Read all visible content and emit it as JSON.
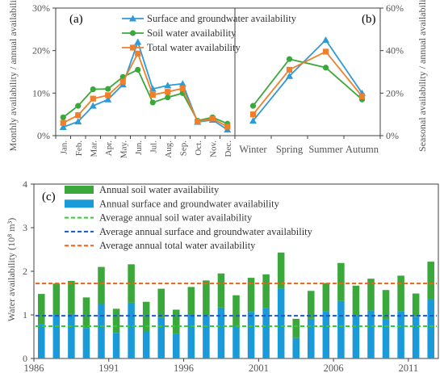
{
  "chart_data": [
    {
      "type": "line",
      "panel_label": "(a)",
      "ylabel": "Monthly availability / annual availability",
      "ylim": [
        0,
        30
      ],
      "yticks": [
        "0%",
        "10%",
        "20%",
        "30%"
      ],
      "categories": [
        "Jan.",
        "Feb.",
        "Mar.",
        "Apr.",
        "May.",
        "Jun.",
        "Jul.",
        "Aug.",
        "Sep.",
        "Oct.",
        "Nov.",
        "Dec."
      ],
      "legend_position": "top-right",
      "series": [
        {
          "name": "Surface and groundwater availability",
          "color": "#2e9ad6",
          "marker": "triangle",
          "values": [
            2.0,
            3.3,
            7.0,
            8.5,
            12.0,
            22.0,
            11.0,
            11.8,
            12.2,
            3.2,
            3.7,
            1.4
          ]
        },
        {
          "name": "Soil water availability",
          "color": "#3aa83a",
          "marker": "circle",
          "values": [
            4.3,
            7.0,
            10.9,
            11.0,
            13.8,
            15.5,
            7.8,
            9.0,
            10.0,
            3.5,
            4.3,
            2.8
          ]
        },
        {
          "name": "Total water availability",
          "color": "#f07e2a",
          "marker": "square",
          "values": [
            3.0,
            4.8,
            8.7,
            9.5,
            12.7,
            19.3,
            9.6,
            10.3,
            11.1,
            3.3,
            4.0,
            2.1
          ]
        }
      ]
    },
    {
      "type": "line",
      "panel_label": "(b)",
      "ylabel": "Seasonal availability / annual availability",
      "ylim": [
        0,
        60
      ],
      "yticks": [
        "0%",
        "20%",
        "40%",
        "60%"
      ],
      "categories": [
        "Winter",
        "Spring",
        "Summer",
        "Autumn"
      ],
      "series": [
        {
          "name": "Surface and groundwater availability",
          "color": "#2e9ad6",
          "marker": "triangle",
          "values": [
            7.0,
            28.0,
            45.0,
            20.0
          ]
        },
        {
          "name": "Soil water availability",
          "color": "#3aa83a",
          "marker": "circle",
          "values": [
            14.0,
            36.0,
            32.0,
            17.0
          ]
        },
        {
          "name": "Total water availability",
          "color": "#f07e2a",
          "marker": "square",
          "values": [
            10.0,
            31.0,
            39.5,
            18.5
          ]
        }
      ]
    },
    {
      "type": "bar",
      "stacked": true,
      "panel_label": "(c)",
      "ylabel": "Water availability  (10⁸ m³)",
      "ylim": [
        0,
        4
      ],
      "yticks": [
        "0",
        "1",
        "2",
        "3",
        "4"
      ],
      "x": [
        1986,
        1987,
        1988,
        1989,
        1990,
        1991,
        1992,
        1993,
        1994,
        1995,
        1996,
        1997,
        1998,
        1999,
        2000,
        2001,
        2002,
        2003,
        2004,
        2005,
        2006,
        2007,
        2008,
        2009,
        2010,
        2011,
        2012
      ],
      "xticks": [
        "1986",
        "1991",
        "1996",
        "2001",
        "2006",
        "2011"
      ],
      "legend_position": "top-left",
      "series": [
        {
          "name": "Annual soil water availability",
          "color": "#3aa83a",
          "values": [
            0.7,
            0.72,
            0.76,
            0.7,
            0.85,
            0.55,
            0.88,
            0.68,
            0.67,
            0.55,
            0.64,
            0.82,
            0.78,
            0.7,
            0.78,
            0.77,
            0.83,
            0.44,
            0.64,
            0.64,
            0.87,
            0.69,
            0.73,
            0.67,
            0.81,
            0.53,
            0.86
          ]
        },
        {
          "name": "Annual surface and groundwater availability",
          "color": "#1a9ad8",
          "values": [
            0.78,
            1.0,
            1.02,
            0.7,
            1.25,
            0.59,
            1.28,
            0.62,
            0.93,
            0.57,
            1.0,
            0.97,
            1.17,
            0.75,
            1.07,
            1.16,
            1.6,
            0.47,
            0.91,
            1.09,
            1.32,
            0.98,
            1.1,
            0.9,
            1.09,
            0.96,
            1.36
          ]
        }
      ],
      "reference_lines": [
        {
          "name": "Average annual soil water availability",
          "color": "#3cc63c",
          "value": 0.74
        },
        {
          "name": "Average annual surface and groundwater availability",
          "color": "#1f57c6",
          "value": 0.98
        },
        {
          "name": "Average annual total water availability",
          "color": "#e9641c",
          "value": 1.72
        }
      ]
    }
  ]
}
